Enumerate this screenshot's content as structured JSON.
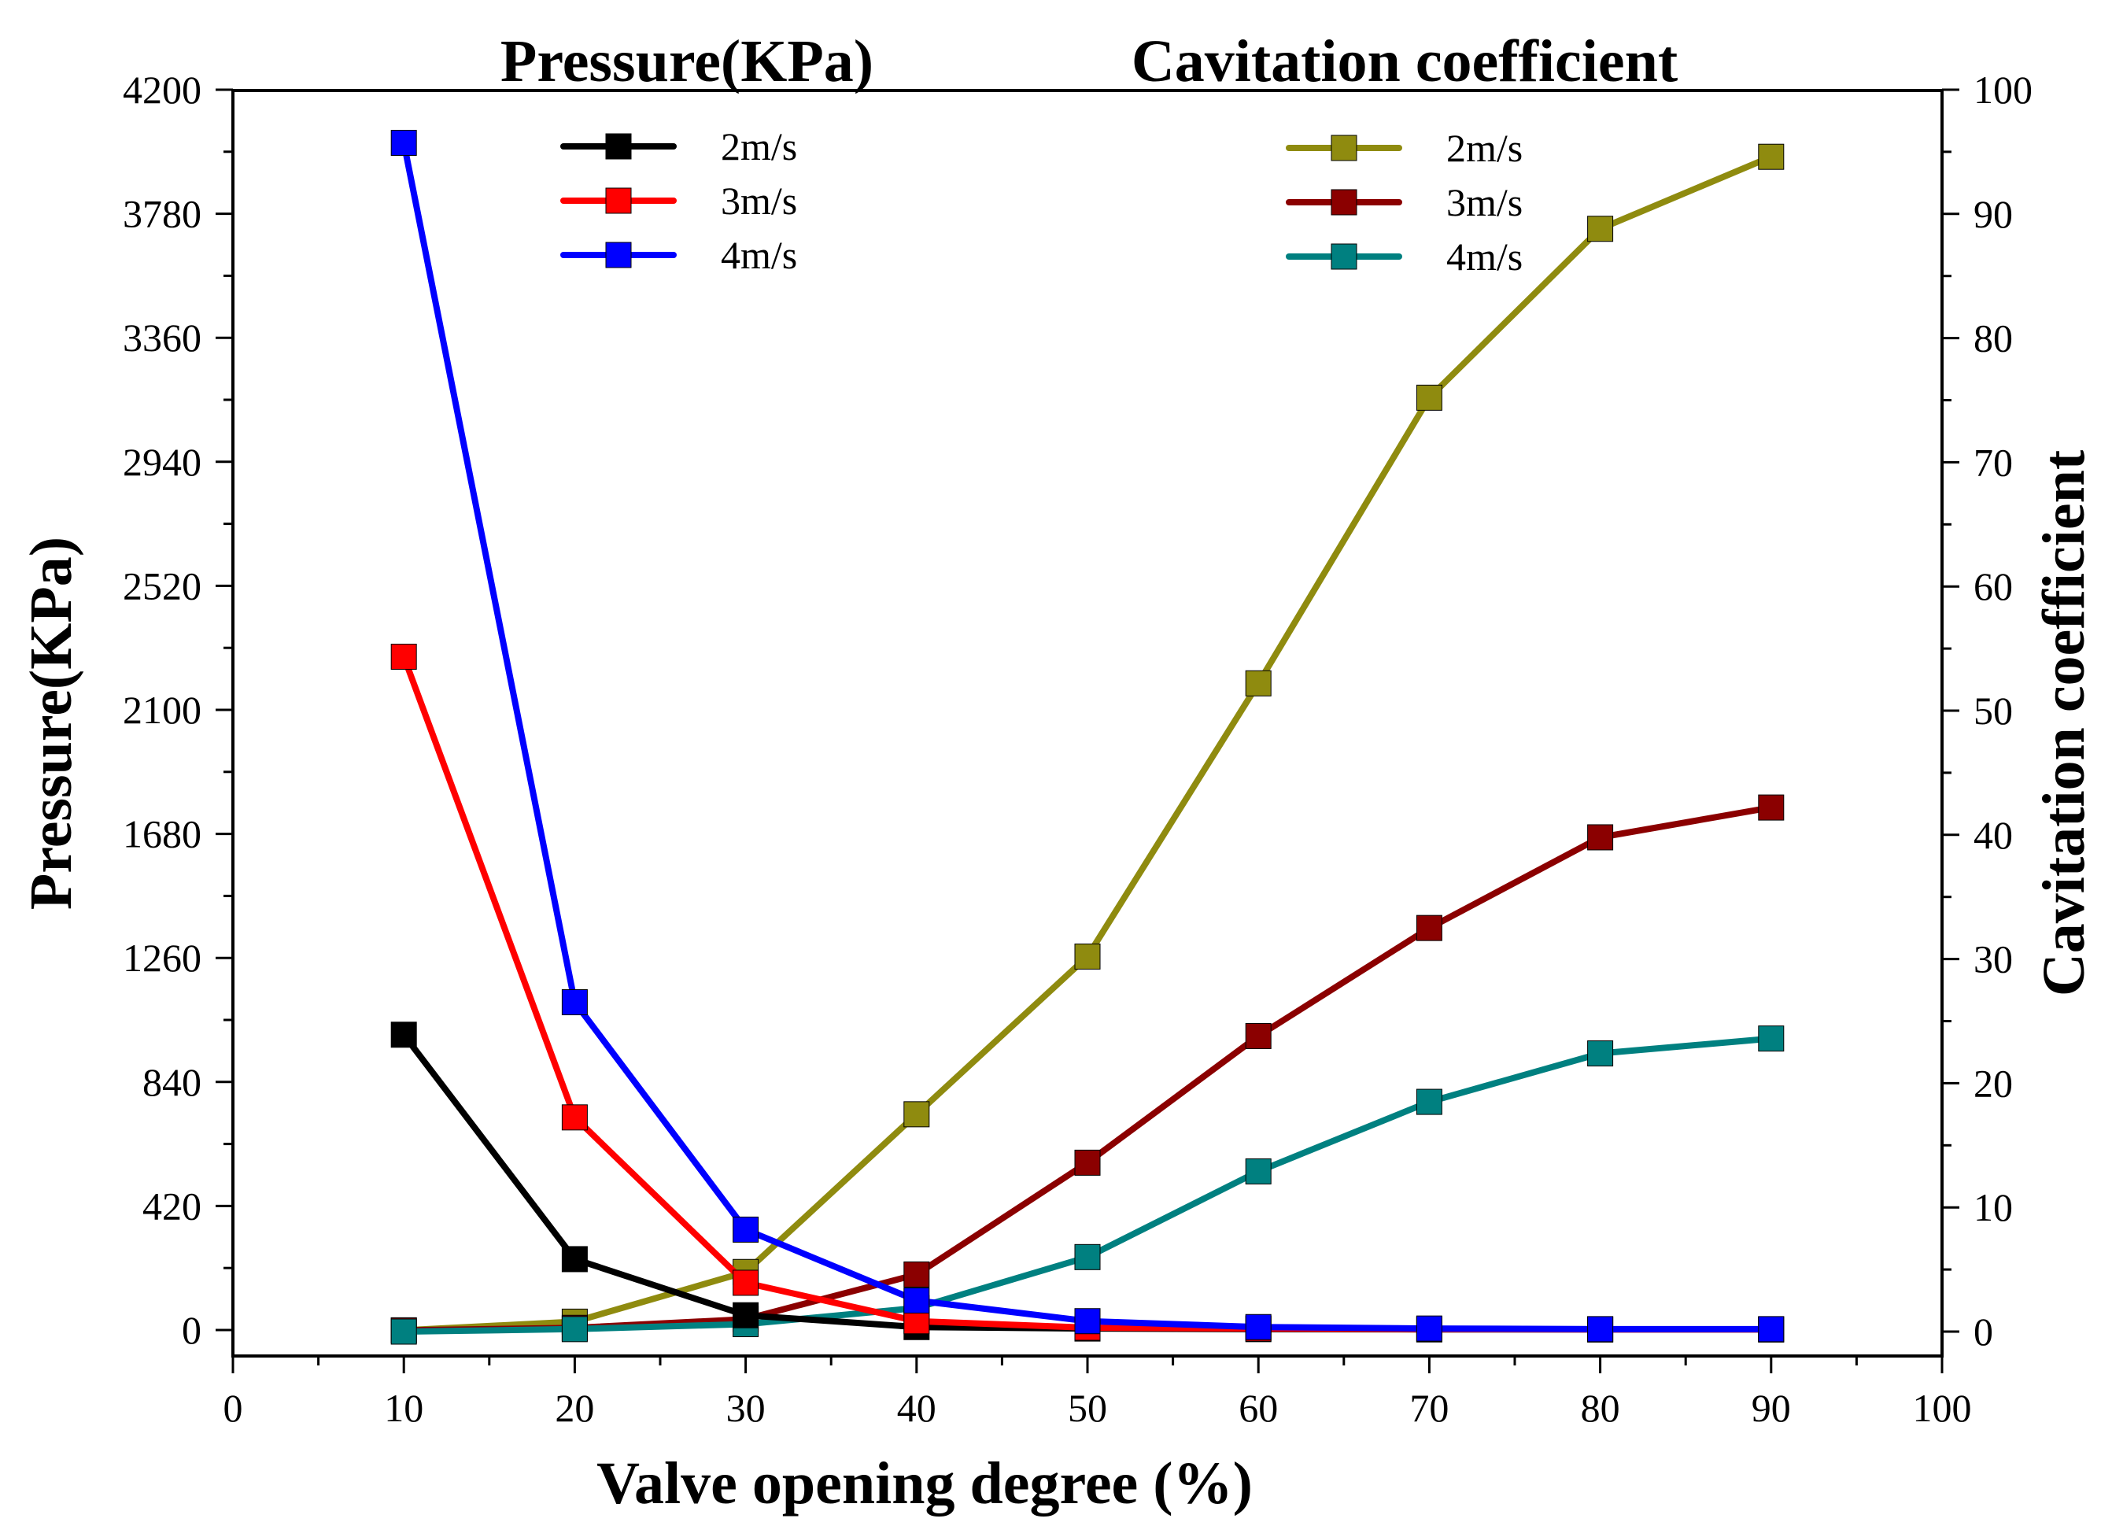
{
  "chart_data": {
    "type": "line",
    "xlabel": "Valve opening degree (%)",
    "x": [
      10,
      20,
      30,
      40,
      50,
      60,
      70,
      80,
      90
    ],
    "xlim": [
      0,
      100
    ],
    "xticks": [
      0,
      10,
      20,
      30,
      40,
      50,
      60,
      70,
      80,
      90,
      100
    ],
    "left_axis": {
      "label": "Pressure(KPa)",
      "ylim": [
        0,
        4200
      ],
      "ticks": [
        0,
        420,
        840,
        1260,
        1680,
        2100,
        2520,
        2940,
        3360,
        3780,
        4200
      ],
      "legend_title": "Pressure(KPa)",
      "series": [
        {
          "name": "2m/s",
          "color": "#000000",
          "values": [
            1000,
            240,
            50,
            10,
            5,
            3,
            2,
            2,
            2
          ]
        },
        {
          "name": "3m/s",
          "color": "#ff0000",
          "values": [
            2280,
            720,
            160,
            30,
            8,
            5,
            3,
            2,
            2
          ]
        },
        {
          "name": "4m/s",
          "color": "#0000ff",
          "values": [
            4020,
            1110,
            340,
            100,
            30,
            10,
            5,
            3,
            3
          ]
        }
      ]
    },
    "right_axis": {
      "label": "Cavitation coefficient",
      "ylim": [
        0,
        100
      ],
      "ticks": [
        0,
        10,
        20,
        30,
        40,
        50,
        60,
        70,
        80,
        90,
        100
      ],
      "legend_title": "Cavitation coefficient",
      "series": [
        {
          "name": "2m/s",
          "color": "#8f8b0f",
          "values": [
            0.1,
            0.8,
            4.8,
            17.5,
            30.2,
            52.2,
            75.2,
            88.8,
            94.6
          ]
        },
        {
          "name": "3m/s",
          "color": "#8b0000",
          "values": [
            0.1,
            0.3,
            1.0,
            4.6,
            13.6,
            23.8,
            32.5,
            39.8,
            42.2
          ]
        },
        {
          "name": "4m/s",
          "color": "#008080",
          "values": [
            0.0,
            0.2,
            0.6,
            1.9,
            6.0,
            12.9,
            18.5,
            22.4,
            23.6
          ]
        }
      ]
    },
    "grid": false
  }
}
